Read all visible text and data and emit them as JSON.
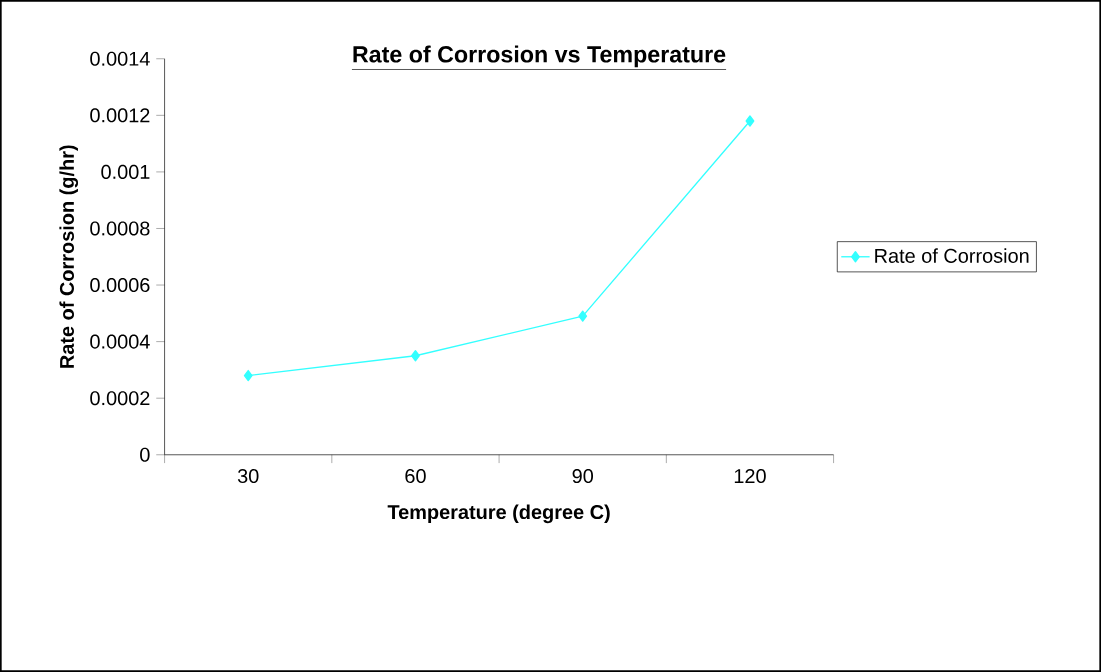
{
  "chart_data": {
    "type": "line",
    "title": "Rate of Corrosion vs Temperature",
    "xlabel": "Temperature (degree C)",
    "ylabel": "Rate of Corrosion (g/hr)",
    "categories": [
      "30",
      "60",
      "90",
      "120"
    ],
    "series": [
      {
        "name": "Rate of Corrosion",
        "color": "#33ffff",
        "values": [
          0.00028,
          0.00035,
          0.00049,
          0.00118
        ]
      }
    ],
    "ylim": [
      0,
      0.0014
    ],
    "yticks": [
      0,
      0.0002,
      0.0004,
      0.0006,
      0.0008,
      0.001,
      0.0012,
      0.0014
    ],
    "grid": false,
    "legend": "right",
    "marker": "diamond",
    "line_style": "solid"
  }
}
